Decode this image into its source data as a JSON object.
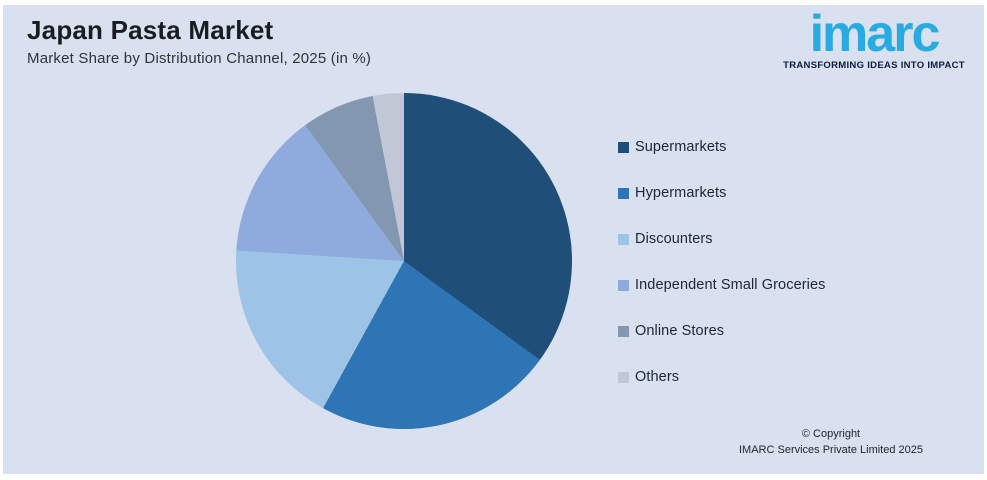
{
  "page": {
    "background_color": "#d9e0ef",
    "frame_color": "#ffffff"
  },
  "header": {
    "title": "Japan Pasta Market",
    "subtitle": "Market Share by Distribution Channel, 2025 (in %)"
  },
  "logo": {
    "name": "imarc",
    "tagline": "TRANSFORMING IDEAS INTO IMPACT",
    "brand_color": "#29abe2",
    "tagline_color": "#0d1b3e"
  },
  "chart_data": {
    "type": "pie",
    "title": "Japan Pasta Market",
    "subtitle": "Market Share by Distribution Channel, 2025 (in %)",
    "unit": "%",
    "categories": [
      "Supermarkets",
      "Hypermarkets",
      "Discounters",
      "Independent Small Groceries",
      "Online Stores",
      "Others"
    ],
    "values": [
      35,
      23,
      18,
      14,
      7,
      3
    ],
    "colors": [
      "#1f4e79",
      "#2e75b6",
      "#9dc3e6",
      "#8faadc",
      "#8497b0",
      "#bfc8d4"
    ],
    "start_angle_deg": 0,
    "direction": "clockwise",
    "legend_position": "right",
    "data_labels": false
  },
  "footer": {
    "copyright_line1": "© Copyright",
    "copyright_line2": "IMARC Services Private Limited 2025"
  }
}
